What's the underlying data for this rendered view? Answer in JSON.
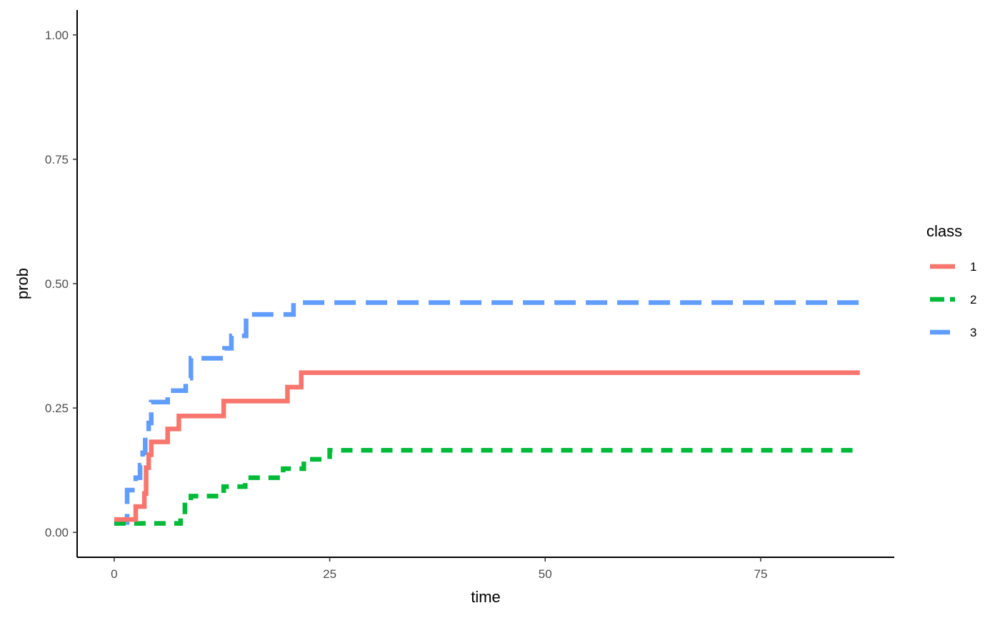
{
  "chart_data": {
    "type": "line",
    "step": true,
    "xlabel": "time",
    "ylabel": "prob",
    "xlim": [
      -4.3,
      90.5
    ],
    "ylim": [
      -0.05,
      1.05
    ],
    "x_ticks": [
      0,
      25,
      50,
      75
    ],
    "x_tick_labels": [
      "0",
      "25",
      "50",
      "75"
    ],
    "y_ticks": [
      0,
      0.25,
      0.5,
      0.75,
      1
    ],
    "y_tick_labels": [
      "0.00",
      "0.25",
      "0.50",
      "0.75",
      "1.00"
    ],
    "grid": false,
    "legend": {
      "title": "class",
      "placement": "right"
    },
    "series": [
      {
        "name": "1",
        "color": "#F8766D",
        "dash": "solid",
        "x": [
          0,
          2.5,
          3.5,
          3.7,
          4.0,
          4.3,
          6.2,
          7.5,
          12.7,
          20.1,
          21.7,
          86.5
        ],
        "y": [
          0.026,
          0.052,
          0.078,
          0.13,
          0.156,
          0.182,
          0.208,
          0.234,
          0.264,
          0.292,
          0.321,
          0.321
        ]
      },
      {
        "name": "2",
        "color": "#00BA38",
        "dash": "dashed-short",
        "x": [
          0,
          7.7,
          8.2,
          8.9,
          12.7,
          15.2,
          19.6,
          22.0,
          25.0,
          86.5
        ],
        "y": [
          0.018,
          0.036,
          0.055,
          0.073,
          0.092,
          0.11,
          0.128,
          0.147,
          0.165,
          0.165
        ]
      },
      {
        "name": "3",
        "color": "#619CFF",
        "dash": "dashed-long",
        "x": [
          0,
          1.5,
          2.5,
          3.0,
          3.3,
          3.6,
          4.0,
          4.3,
          6.2,
          8.3,
          8.9,
          12.8,
          13.6,
          15.3,
          20.8,
          86.5
        ],
        "y": [
          0.02,
          0.085,
          0.11,
          0.135,
          0.16,
          0.195,
          0.22,
          0.262,
          0.285,
          0.31,
          0.35,
          0.37,
          0.395,
          0.438,
          0.462,
          0.462
        ]
      }
    ]
  }
}
